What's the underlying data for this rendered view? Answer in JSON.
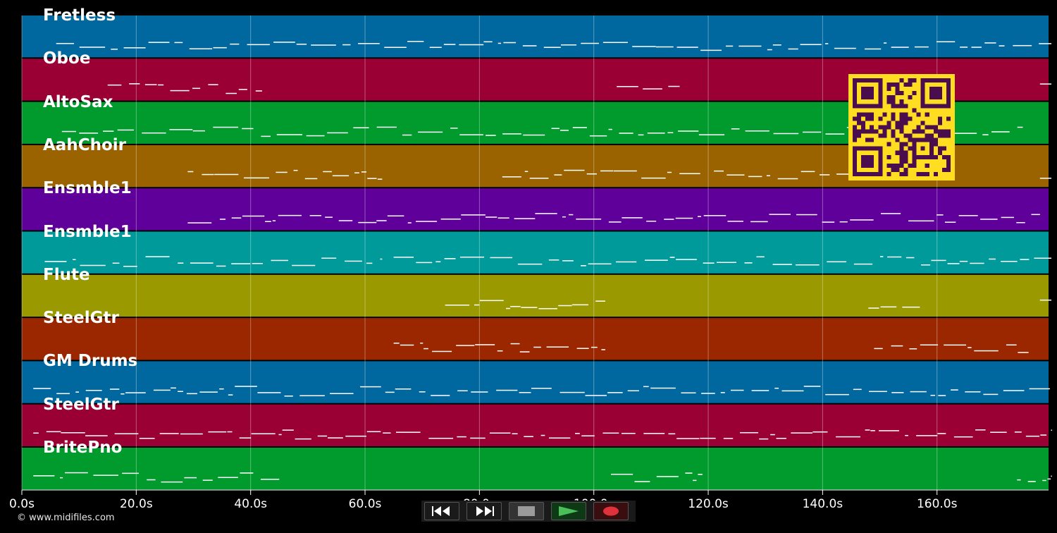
{
  "tracks": [
    {
      "name": "Fretless",
      "color": "#00689e"
    },
    {
      "name": "Oboe",
      "color": "#9b0035"
    },
    {
      "name": "AltoSax",
      "color": "#009a2d"
    },
    {
      "name": "AahChoir",
      "color": "#9a6300"
    },
    {
      "name": "Ensmble1",
      "color": "#5f009a"
    },
    {
      "name": "Ensmble1",
      "color": "#009a9a"
    },
    {
      "name": "Flute",
      "color": "#9a9a00"
    },
    {
      "name": "SteelGtr",
      "color": "#9a2700"
    },
    {
      "name": "GM Drums",
      "color": "#00689e"
    },
    {
      "name": "SteelGtr",
      "color": "#9b0035"
    },
    {
      "name": "BritePno",
      "color": "#009a2d"
    }
  ],
  "time_axis": {
    "ticks": [
      "0.0s",
      "20.0s",
      "40.0s",
      "60.0s",
      "80.0s",
      "100.0s",
      "120.0s",
      "140.0s",
      "160.0s"
    ],
    "tick_values": [
      0,
      20,
      40,
      60,
      80,
      100,
      120,
      140,
      160
    ]
  },
  "copyright": "© www.midifiles.com",
  "controls": {
    "rewind": "rewind-icon",
    "fast_forward": "fast-forward-icon",
    "stop": "stop-icon",
    "play": "play-icon",
    "record": "record-icon"
  },
  "colors": {
    "background": "#000000",
    "note": "#ffffff",
    "qr_fg": "#4a0e4e",
    "qr_bg": "#ffde21"
  }
}
